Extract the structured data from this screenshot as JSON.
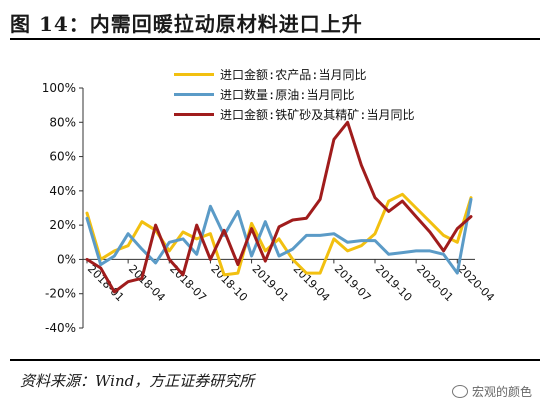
{
  "page": {
    "title": "图 14：内需回暖拉动原材料进口上升",
    "source": "资料来源：Wind，方正证券研究所",
    "watermark": "宏观的颜色"
  },
  "chart_data": {
    "type": "line",
    "title": "",
    "xlabel": "",
    "ylabel": "",
    "ylim": [
      -40,
      100
    ],
    "yticks": [
      -40,
      -20,
      0,
      20,
      40,
      60,
      80,
      100
    ],
    "ytick_labels": [
      "-40%",
      "-20%",
      "0%",
      "20%",
      "40%",
      "60%",
      "80%",
      "100%"
    ],
    "x_ticks": [
      "2018-01",
      "2018-04",
      "2018-07",
      "2018-10",
      "2019-01",
      "2019-04",
      "2019-07",
      "2019-10",
      "2020-01",
      "2020-04"
    ],
    "x": [
      "2018-01",
      "2018-02",
      "2018-03",
      "2018-04",
      "2018-05",
      "2018-06",
      "2018-07",
      "2018-08",
      "2018-09",
      "2018-10",
      "2018-11",
      "2018-12",
      "2019-01",
      "2019-02",
      "2019-03",
      "2019-04",
      "2019-05",
      "2019-06",
      "2019-07",
      "2019-08",
      "2019-09",
      "2019-10",
      "2019-11",
      "2019-12",
      "2020-01",
      "2020-02",
      "2020-03",
      "2020-04",
      "2020-05"
    ],
    "grid": false,
    "legend_position": "top-right",
    "series": [
      {
        "name": "进口金额:农产品:当月同比",
        "color": "#f2c010",
        "values": [
          27,
          0,
          5,
          8,
          22,
          17,
          5,
          16,
          12,
          15,
          -9,
          -8,
          21,
          5,
          12,
          0,
          -8,
          -8,
          12,
          5,
          8,
          15,
          34,
          38,
          30,
          22,
          14,
          10,
          36
        ]
      },
      {
        "name": "进口数量:原油:当月同比",
        "color": "#5b9bc7",
        "values": [
          24,
          -3,
          2,
          15,
          6,
          -2,
          10,
          12,
          3,
          31,
          14,
          28,
          2,
          22,
          2,
          6,
          14,
          14,
          15,
          10,
          11,
          11,
          3,
          4,
          5,
          5,
          3,
          -8,
          35
        ]
      },
      {
        "name": "进口金额:铁矿砂及其精矿:当月同比",
        "color": "#a01c1c",
        "values": [
          0,
          -5,
          -19,
          -13,
          -11,
          20,
          0,
          -9,
          20,
          0,
          17,
          -3,
          18,
          -1,
          19,
          23,
          24,
          35,
          70,
          80,
          55,
          36,
          28,
          34,
          25,
          16,
          5,
          18,
          25
        ]
      }
    ]
  }
}
